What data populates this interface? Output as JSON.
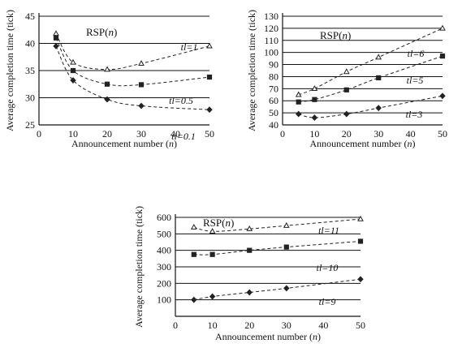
{
  "chart_data": [
    {
      "type": "line",
      "title": "RSP(n)",
      "xlabel": "Announcement number  (n)",
      "ylabel": "Average completion time (tick)",
      "xlim": [
        0,
        50
      ],
      "ylim": [
        25,
        45
      ],
      "x_ticks": [
        "0",
        "10",
        "20",
        "30",
        "40",
        "50"
      ],
      "y_ticks": [
        "25",
        "30",
        "35",
        "40",
        "45"
      ],
      "grid": "horizontal",
      "series": [
        {
          "name": "tl=1",
          "marker": "triangle",
          "x": [
            5,
            10,
            20,
            30,
            50
          ],
          "values": [
            41.8,
            36.5,
            35.2,
            36.3,
            39.5
          ]
        },
        {
          "name": "tl=0.5",
          "marker": "square",
          "x": [
            5,
            10,
            20,
            30,
            50
          ],
          "values": [
            41.0,
            35.0,
            32.5,
            32.4,
            33.8
          ]
        },
        {
          "name": "tl=0.1",
          "marker": "diamond",
          "x": [
            5,
            10,
            20,
            30,
            50
          ],
          "values": [
            39.5,
            33.2,
            29.7,
            28.5,
            27.8
          ]
        }
      ]
    },
    {
      "type": "line",
      "title": "RSP(n)",
      "xlabel": "Announcement number  (n)",
      "ylabel": "Average completion time (tick)",
      "xlim": [
        0,
        50
      ],
      "ylim": [
        40,
        130
      ],
      "x_ticks": [
        "0",
        "10",
        "20",
        "30",
        "40",
        "50"
      ],
      "y_ticks": [
        "40",
        "50",
        "60",
        "70",
        "80",
        "90",
        "100",
        "110",
        "120",
        "130"
      ],
      "grid": "horizontal",
      "series": [
        {
          "name": "tl=6",
          "marker": "triangle",
          "x": [
            5,
            10,
            20,
            30,
            50
          ],
          "values": [
            65,
            70,
            84,
            96,
            120
          ]
        },
        {
          "name": "tl=5",
          "marker": "square",
          "x": [
            5,
            10,
            20,
            30,
            50
          ],
          "values": [
            59,
            61,
            69,
            79,
            97
          ]
        },
        {
          "name": "tl=3",
          "marker": "diamond",
          "x": [
            5,
            10,
            20,
            30,
            50
          ],
          "values": [
            49,
            46,
            49,
            54,
            64
          ]
        }
      ]
    },
    {
      "type": "line",
      "title": "RSP(n)",
      "xlabel": "Announcement number  (n)",
      "ylabel": "Average completion time (tick)",
      "xlim": [
        0,
        50
      ],
      "ylim": [
        0,
        600
      ],
      "x_ticks": [
        "0",
        "10",
        "20",
        "30",
        "40",
        "50"
      ],
      "y_ticks": [
        "100",
        "200",
        "300",
        "400",
        "500",
        "600"
      ],
      "grid": "horizontal",
      "series": [
        {
          "name": "tl=11",
          "marker": "triangle",
          "x": [
            5,
            10,
            20,
            30,
            50
          ],
          "values": [
            540,
            515,
            530,
            550,
            590
          ]
        },
        {
          "name": "tl=10",
          "marker": "square",
          "x": [
            5,
            10,
            20,
            30,
            50
          ],
          "values": [
            375,
            375,
            400,
            420,
            455
          ]
        },
        {
          "name": "tl=9",
          "marker": "diamond",
          "x": [
            5,
            10,
            20,
            30,
            50
          ],
          "values": [
            100,
            120,
            145,
            170,
            225
          ]
        }
      ]
    }
  ]
}
